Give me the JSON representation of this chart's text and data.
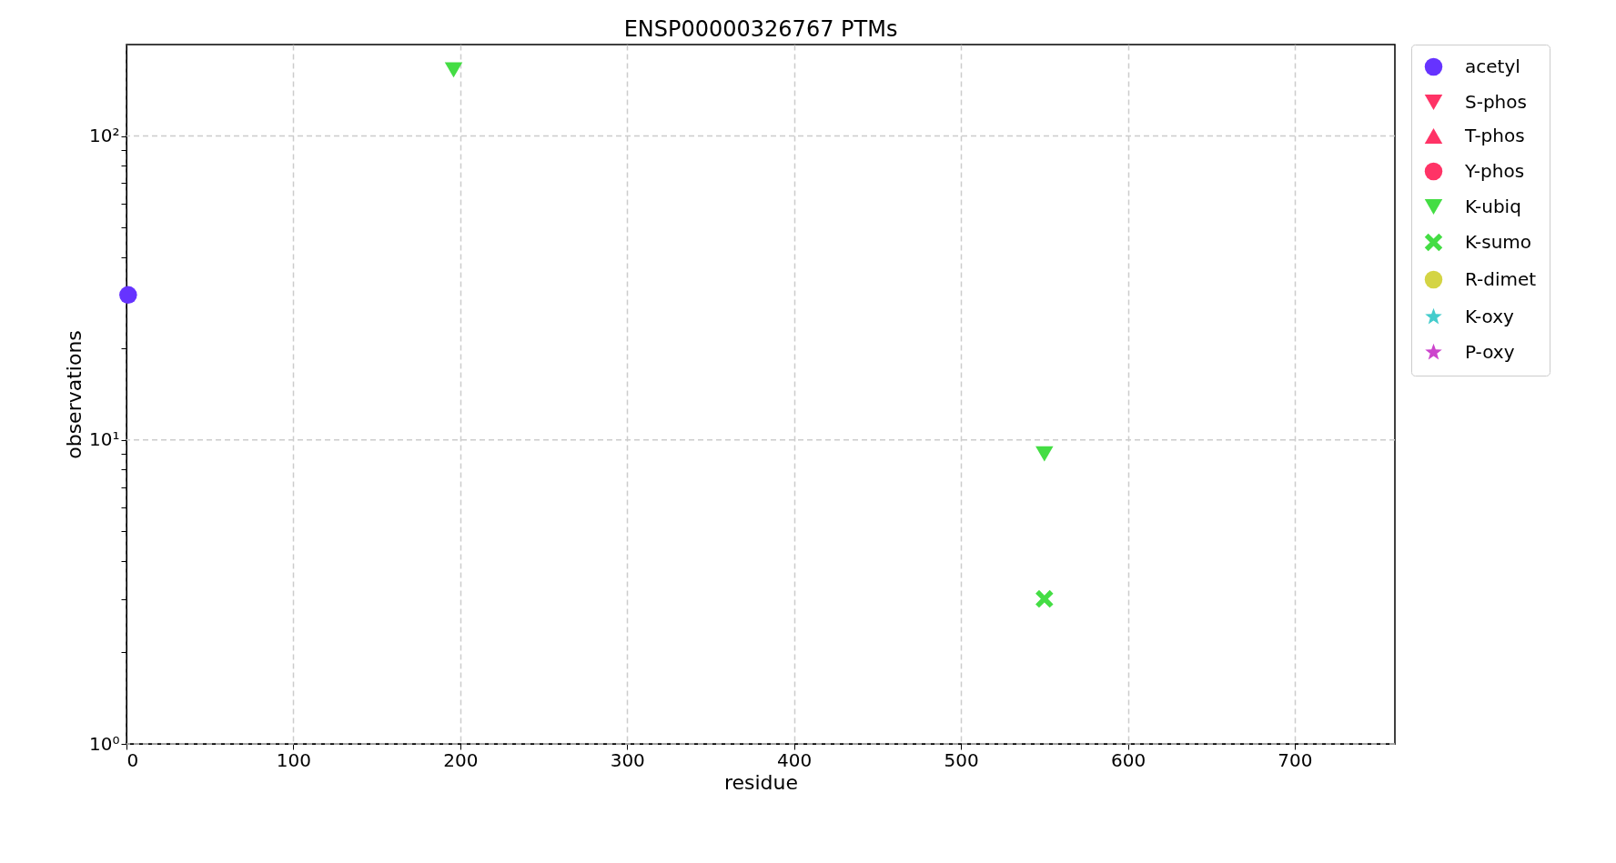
{
  "chart_data": {
    "type": "scatter",
    "title": "ENSP00000326767 PTMs",
    "xlabel": "residue",
    "ylabel": "observations",
    "log": "y",
    "grid": true,
    "legend": "top right",
    "xlim": [
      0,
      760
    ],
    "xticks": [
      0,
      100,
      200,
      300,
      400,
      500,
      600,
      700
    ],
    "ylim": [
      1,
      200
    ],
    "yticks": [
      {
        "value": 1,
        "label": "10⁰"
      },
      {
        "value": 2,
        "label": null
      },
      {
        "value": 3,
        "label": null
      },
      {
        "value": 4,
        "label": null
      },
      {
        "value": 5,
        "label": null
      },
      {
        "value": 6,
        "label": null
      },
      {
        "value": 7,
        "label": null
      },
      {
        "value": 8,
        "label": null
      },
      {
        "value": 9,
        "label": null
      },
      {
        "value": 10,
        "label": "10¹"
      },
      {
        "value": 20,
        "label": null
      },
      {
        "value": 30,
        "label": null
      },
      {
        "value": 40,
        "label": null
      },
      {
        "value": 50,
        "label": null
      },
      {
        "value": 60,
        "label": null
      },
      {
        "value": 70,
        "label": null
      },
      {
        "value": 80,
        "label": null
      },
      {
        "value": 90,
        "label": null
      },
      {
        "value": 100,
        "label": "10²"
      }
    ],
    "series": [
      {
        "name": "acetyl",
        "color": "#6633ff",
        "marker": "circle",
        "x": [
          1
        ],
        "values": [
          30
        ]
      },
      {
        "name": "S-phos",
        "color": "#ff3366",
        "marker": "triangle-down"
      },
      {
        "name": "T-phos",
        "color": "#ff3366",
        "marker": "triangle"
      },
      {
        "name": "Y-phos",
        "color": "#ff3366",
        "marker": "circle"
      },
      {
        "name": "K-ubiq",
        "color": "#44dd44",
        "marker": "triangle-down",
        "x": [
          196,
          550
        ],
        "values": [
          165,
          9
        ]
      },
      {
        "name": "K-sumo",
        "color": "#44dd44",
        "marker": "cross",
        "x": [
          550
        ],
        "values": [
          3
        ]
      },
      {
        "name": "R-dimet",
        "color": "#d4d444",
        "marker": "circle"
      },
      {
        "name": "K-oxy",
        "color": "#44cccc",
        "marker": "star"
      },
      {
        "name": "P-oxy",
        "color": "#cc44cc",
        "marker": "star"
      }
    ]
  }
}
